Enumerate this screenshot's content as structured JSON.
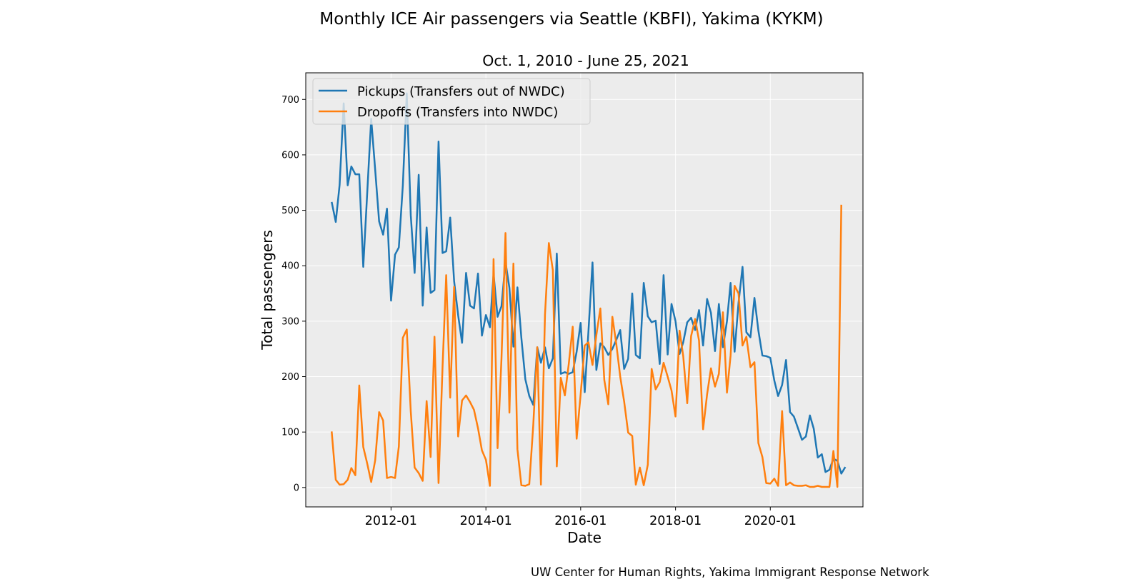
{
  "figure": {
    "suptitle": "Monthly ICE Air passengers via Seattle (KBFI), Yakima (KYKM)",
    "credit": "UW Center for Human Rights, Yakima Immigrant Response Network"
  },
  "chart_data": {
    "type": "line",
    "title": "Oct. 1, 2010 - June 25, 2021",
    "xlabel": "Date",
    "ylabel": "Total passengers",
    "x_ticks": [
      "2012-01",
      "2014-01",
      "2016-01",
      "2018-01",
      "2020-01"
    ],
    "y_ticks": [
      0,
      100,
      200,
      300,
      400,
      500,
      600,
      700
    ],
    "xlim": [
      "2010-03-15",
      "2021-12-15"
    ],
    "ylim": [
      -35,
      748
    ],
    "grid": true,
    "legend": "upper-left",
    "x_start": "2010-10",
    "x_end": "2021-06",
    "series": [
      {
        "name": "Pickups (Transfers out of NWDC)",
        "color": "#1f77b4",
        "values": [
          515,
          479,
          546,
          693,
          545,
          579,
          565,
          565,
          398,
          528,
          665,
          573,
          480,
          456,
          503,
          337,
          420,
          433,
          545,
          711,
          491,
          387,
          564,
          328,
          469,
          351,
          356,
          624,
          423,
          426,
          487,
          372,
          311,
          261,
          387,
          328,
          323,
          386,
          274,
          311,
          289,
          385,
          308,
          327,
          407,
          360,
          254,
          361,
          270,
          195,
          165,
          149,
          253,
          225,
          253,
          215,
          233,
          422,
          205,
          208,
          205,
          208,
          245,
          297,
          172,
          281,
          406,
          212,
          260,
          253,
          239,
          250,
          266,
          284,
          214,
          232,
          350,
          239,
          233,
          369,
          309,
          298,
          301,
          223,
          383,
          240,
          331,
          300,
          241,
          262,
          298,
          306,
          284,
          320,
          256,
          340,
          315,
          246,
          331,
          253,
          300,
          369,
          245,
          333,
          398,
          280,
          271,
          342,
          283,
          238,
          237,
          234,
          193,
          165,
          185,
          230,
          136,
          128,
          107,
          86,
          92,
          130,
          106,
          54,
          60,
          28,
          32,
          52,
          48,
          25,
          37
        ]
      },
      {
        "name": "Dropoffs (Transfers into NWDC)",
        "color": "#ff7f0e",
        "values": [
          101,
          14,
          5,
          6,
          14,
          35,
          22,
          184,
          73,
          44,
          10,
          49,
          136,
          121,
          17,
          19,
          17,
          74,
          270,
          285,
          137,
          36,
          26,
          12,
          156,
          55,
          272,
          8,
          218,
          383,
          162,
          362,
          92,
          157,
          166,
          154,
          140,
          107,
          67,
          50,
          3,
          412,
          71,
          233,
          459,
          135,
          404,
          69,
          4,
          3,
          6,
          113,
          253,
          5,
          312,
          441,
          392,
          38,
          198,
          166,
          222,
          290,
          88,
          168,
          256,
          262,
          221,
          275,
          323,
          194,
          150,
          308,
          260,
          200,
          155,
          99,
          93,
          5,
          36,
          4,
          41,
          214,
          177,
          190,
          225,
          200,
          175,
          128,
          283,
          237,
          152,
          273,
          304,
          265,
          105,
          168,
          215,
          182,
          205,
          316,
          171,
          238,
          364,
          350,
          256,
          272,
          217,
          226,
          80,
          55,
          8,
          7,
          16,
          3,
          138,
          4,
          9,
          4,
          3,
          3,
          4,
          1,
          1,
          3,
          1,
          1,
          1,
          66,
          1,
          510
        ]
      }
    ]
  }
}
